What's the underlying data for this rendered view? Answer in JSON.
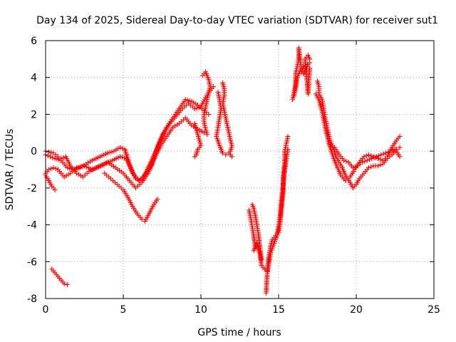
{
  "chart_data": {
    "type": "scatter",
    "title": "Day 134 of 2025, Sidereal Day-to-day VTEC variation (SDTVAR) for receiver sut1",
    "xlabel": "GPS time / hours",
    "ylabel": "SDTVAR / TECUs",
    "xlim": [
      0,
      25
    ],
    "ylim": [
      -8,
      6
    ],
    "xticks": [
      "0",
      "5",
      "10",
      "15",
      "20",
      "25"
    ],
    "yticks": [
      "-8",
      "-6",
      "-4",
      "-2",
      "0",
      "2",
      "4",
      "6"
    ],
    "grid": true,
    "marker": "plus",
    "color": "#ff0000",
    "series": [
      {
        "name": "arc-1",
        "points": [
          [
            0.0,
            0.0
          ],
          [
            0.2,
            -0.05
          ],
          [
            0.5,
            -0.1
          ],
          [
            0.8,
            -0.3
          ],
          [
            1.0,
            -0.4
          ],
          [
            1.3,
            -0.3
          ],
          [
            1.6,
            -0.8
          ],
          [
            2.0,
            -1.2
          ],
          [
            2.4,
            -1.4
          ],
          [
            2.8,
            -1.1
          ],
          [
            3.3,
            -0.9
          ],
          [
            3.8,
            -0.7
          ],
          [
            4.3,
            -0.5
          ],
          [
            4.8,
            -0.3
          ],
          [
            5.2,
            -0.4
          ],
          [
            5.6,
            -1.2
          ],
          [
            6.0,
            -1.6
          ],
          [
            6.4,
            -1.3
          ],
          [
            6.8,
            -0.8
          ],
          [
            7.2,
            0.2
          ],
          [
            7.6,
            1.0
          ],
          [
            8.0,
            1.5
          ],
          [
            8.4,
            1.9
          ],
          [
            8.8,
            2.3
          ],
          [
            9.2,
            2.6
          ],
          [
            9.6,
            2.3
          ],
          [
            10.0,
            2.4
          ],
          [
            10.3,
            2.9
          ],
          [
            10.6,
            3.3
          ],
          [
            10.8,
            3.5
          ]
        ]
      },
      {
        "name": "arc-2",
        "points": [
          [
            0.0,
            -0.2
          ],
          [
            0.3,
            -0.3
          ],
          [
            0.6,
            -0.4
          ],
          [
            1.0,
            -0.5
          ],
          [
            1.4,
            -0.9
          ],
          [
            1.8,
            -1.0
          ],
          [
            2.2,
            -0.9
          ],
          [
            2.6,
            -0.7
          ],
          [
            3.0,
            -0.5
          ],
          [
            3.5,
            -0.3
          ],
          [
            4.0,
            -0.1
          ],
          [
            4.4,
            0.0
          ],
          [
            4.8,
            0.2
          ],
          [
            5.1,
            0.1
          ],
          [
            5.4,
            -0.7
          ],
          [
            5.8,
            -1.5
          ],
          [
            6.2,
            -1.6
          ],
          [
            6.6,
            -0.9
          ],
          [
            7.0,
            -0.2
          ],
          [
            7.4,
            0.6
          ],
          [
            7.8,
            1.3
          ],
          [
            8.2,
            1.8
          ],
          [
            8.6,
            2.3
          ],
          [
            9.0,
            2.8
          ],
          [
            9.4,
            2.7
          ],
          [
            9.8,
            2.5
          ],
          [
            10.2,
            2.2
          ],
          [
            10.5,
            2.0
          ]
        ]
      },
      {
        "name": "arc-3",
        "points": [
          [
            0.0,
            -1.2
          ],
          [
            0.2,
            -1.0
          ],
          [
            0.5,
            -0.9
          ],
          [
            0.8,
            -1.0
          ],
          [
            1.2,
            -1.4
          ],
          [
            1.6,
            -1.2
          ],
          [
            2.0,
            -0.9
          ],
          [
            2.5,
            -0.8
          ],
          [
            3.0,
            -1.0
          ],
          [
            3.5,
            -0.8
          ],
          [
            4.0,
            -0.6
          ],
          [
            4.5,
            -0.9
          ],
          [
            5.0,
            -1.2
          ],
          [
            5.4,
            -1.6
          ],
          [
            5.8,
            -2.0
          ],
          [
            6.2,
            -1.7
          ],
          [
            6.6,
            -1.2
          ],
          [
            7.0,
            -0.4
          ],
          [
            7.4,
            0.3
          ],
          [
            7.8,
            0.8
          ],
          [
            8.2,
            1.3
          ],
          [
            8.6,
            1.5
          ],
          [
            9.0,
            1.8
          ],
          [
            9.4,
            1.4
          ],
          [
            9.8,
            1.2
          ],
          [
            10.2,
            1.0
          ]
        ]
      },
      {
        "name": "arc-4",
        "points": [
          [
            0.0,
            -1.3
          ],
          [
            0.2,
            -1.6
          ],
          [
            0.4,
            -1.9
          ],
          [
            0.6,
            -2.1
          ],
          [
            3.8,
            -1.2
          ],
          [
            4.2,
            -1.5
          ],
          [
            4.6,
            -1.8
          ],
          [
            5.0,
            -2.1
          ],
          [
            5.3,
            -2.5
          ],
          [
            5.6,
            -3.0
          ],
          [
            5.9,
            -3.4
          ],
          [
            6.2,
            -3.7
          ],
          [
            6.4,
            -3.8
          ],
          [
            6.6,
            -3.5
          ],
          [
            6.9,
            -3.0
          ],
          [
            7.2,
            -2.6
          ]
        ]
      },
      {
        "name": "arc-5",
        "points": [
          [
            0.4,
            -6.4
          ],
          [
            0.6,
            -6.6
          ],
          [
            0.8,
            -6.8
          ],
          [
            1.0,
            -7.0
          ],
          [
            1.2,
            -7.2
          ],
          [
            1.4,
            -7.25
          ]
        ]
      },
      {
        "name": "arc-6",
        "points": [
          [
            10.1,
            4.1
          ],
          [
            10.3,
            4.3
          ],
          [
            10.5,
            3.9
          ],
          [
            10.6,
            3.5
          ],
          [
            10.5,
            3.2
          ],
          [
            10.4,
            2.8
          ],
          [
            10.3,
            2.4
          ],
          [
            10.2,
            2.0
          ],
          [
            10.2,
            1.6
          ],
          [
            10.3,
            1.2
          ],
          [
            10.4,
            0.9
          ]
        ]
      },
      {
        "name": "arc-7",
        "points": [
          [
            9.6,
            1.5
          ],
          [
            9.7,
            1.2
          ],
          [
            9.8,
            0.9
          ],
          [
            9.9,
            0.6
          ],
          [
            10.0,
            0.3
          ],
          [
            9.8,
            0.1
          ],
          [
            9.7,
            -0.2
          ],
          [
            9.6,
            -0.3
          ]
        ]
      },
      {
        "name": "arc-8",
        "points": [
          [
            11.1,
            3.2
          ],
          [
            11.2,
            2.8
          ],
          [
            11.3,
            2.3
          ],
          [
            11.2,
            1.8
          ],
          [
            11.1,
            1.3
          ],
          [
            11.0,
            0.8
          ],
          [
            11.2,
            0.3
          ],
          [
            11.4,
            -0.1
          ],
          [
            11.6,
            -0.2
          ],
          [
            11.8,
            -0.1
          ],
          [
            12.0,
            -0.3
          ]
        ]
      },
      {
        "name": "arc-9",
        "points": [
          [
            11.4,
            3.7
          ],
          [
            11.5,
            3.4
          ],
          [
            11.5,
            3.0
          ],
          [
            11.4,
            2.6
          ],
          [
            11.5,
            2.2
          ],
          [
            11.6,
            1.8
          ],
          [
            11.7,
            1.4
          ],
          [
            11.8,
            1.0
          ],
          [
            11.9,
            0.6
          ],
          [
            12.0,
            0.3
          ],
          [
            11.9,
            0.0
          ]
        ]
      },
      {
        "name": "arc-10",
        "points": [
          [
            13.1,
            -3.2
          ],
          [
            13.2,
            -3.6
          ],
          [
            13.3,
            -4.1
          ],
          [
            13.4,
            -4.6
          ],
          [
            13.5,
            -5.2
          ],
          [
            13.4,
            -5.4
          ],
          [
            13.6,
            -5.0
          ],
          [
            13.8,
            -5.6
          ],
          [
            13.9,
            -6.2
          ],
          [
            14.1,
            -6.4
          ]
        ]
      },
      {
        "name": "arc-11",
        "points": [
          [
            13.3,
            -2.9
          ],
          [
            13.4,
            -3.1
          ],
          [
            13.5,
            -3.5
          ],
          [
            13.6,
            -4.0
          ],
          [
            13.7,
            -4.5
          ],
          [
            13.8,
            -5.2
          ],
          [
            13.9,
            -5.9
          ]
        ]
      },
      {
        "name": "arc-12",
        "points": [
          [
            14.2,
            -7.7
          ],
          [
            14.3,
            -6.2
          ],
          [
            14.4,
            -5.6
          ],
          [
            14.5,
            -5.1
          ],
          [
            14.6,
            -4.8
          ],
          [
            14.8,
            -4.6
          ],
          [
            15.0,
            -4.4
          ],
          [
            15.1,
            -3.9
          ],
          [
            15.2,
            -3.0
          ],
          [
            15.3,
            -2.2
          ],
          [
            15.3,
            -1.4
          ],
          [
            15.4,
            -0.6
          ],
          [
            15.4,
            0.0
          ],
          [
            15.5,
            0.4
          ],
          [
            15.6,
            0.8
          ]
        ]
      },
      {
        "name": "arc-13",
        "points": [
          [
            14.3,
            -6.5
          ],
          [
            14.4,
            -6.0
          ],
          [
            14.5,
            -5.5
          ],
          [
            14.7,
            -5.0
          ],
          [
            14.9,
            -4.6
          ],
          [
            15.0,
            -4.0
          ],
          [
            15.1,
            -3.5
          ],
          [
            15.2,
            -2.6
          ],
          [
            15.3,
            -1.8
          ],
          [
            15.4,
            -1.0
          ],
          [
            15.5,
            -0.4
          ],
          [
            15.6,
            0.1
          ]
        ]
      },
      {
        "name": "arc-14",
        "points": [
          [
            15.9,
            2.8
          ],
          [
            16.0,
            3.2
          ],
          [
            16.1,
            3.6
          ],
          [
            16.1,
            4.2
          ],
          [
            16.2,
            4.6
          ],
          [
            16.3,
            5.0
          ],
          [
            16.3,
            5.6
          ],
          [
            16.4,
            4.8
          ],
          [
            16.5,
            4.3
          ],
          [
            16.6,
            4.6
          ],
          [
            16.8,
            4.4
          ],
          [
            17.0,
            4.5
          ],
          [
            16.9,
            3.1
          ],
          [
            16.7,
            5.0
          ],
          [
            16.9,
            5.2
          ],
          [
            17.0,
            5.0
          ]
        ]
      },
      {
        "name": "arc-15",
        "points": [
          [
            16.0,
            3.0
          ],
          [
            16.2,
            4.0
          ],
          [
            16.4,
            4.4
          ],
          [
            16.6,
            4.2
          ],
          [
            16.8,
            4.6
          ],
          [
            17.0,
            4.8
          ]
        ]
      },
      {
        "name": "arc-16",
        "points": [
          [
            17.5,
            3.8
          ],
          [
            17.6,
            3.5
          ],
          [
            17.6,
            3.1
          ],
          [
            17.8,
            2.8
          ],
          [
            17.9,
            2.3
          ],
          [
            18.0,
            1.8
          ],
          [
            18.1,
            1.4
          ],
          [
            18.2,
            1.0
          ],
          [
            18.3,
            0.6
          ],
          [
            18.5,
            0.2
          ],
          [
            18.7,
            -0.3
          ],
          [
            18.9,
            -0.6
          ],
          [
            19.1,
            -0.9
          ],
          [
            19.3,
            -1.3
          ],
          [
            19.6,
            -1.7
          ],
          [
            19.8,
            -2.0
          ],
          [
            20.0,
            -1.8
          ],
          [
            20.2,
            -1.5
          ],
          [
            20.5,
            -1.2
          ],
          [
            20.8,
            -0.9
          ],
          [
            21.1,
            -0.8
          ],
          [
            21.4,
            -0.8
          ],
          [
            21.7,
            -0.7
          ],
          [
            22.0,
            -0.4
          ],
          [
            22.3,
            -0.2
          ],
          [
            22.6,
            0.1
          ],
          [
            22.8,
            0.2
          ]
        ]
      },
      {
        "name": "arc-17",
        "points": [
          [
            17.4,
            3.1
          ],
          [
            17.6,
            2.8
          ],
          [
            17.8,
            2.2
          ],
          [
            18.0,
            1.3
          ],
          [
            18.2,
            0.6
          ],
          [
            18.4,
            0.0
          ],
          [
            18.6,
            -0.5
          ],
          [
            18.8,
            -0.9
          ],
          [
            19.0,
            -1.3
          ],
          [
            19.3,
            -1.6
          ],
          [
            19.6,
            -1.4
          ],
          [
            19.9,
            -1.0
          ],
          [
            20.2,
            -0.6
          ],
          [
            20.5,
            -0.3
          ],
          [
            20.8,
            -0.2
          ],
          [
            21.1,
            -0.3
          ],
          [
            21.4,
            -0.4
          ],
          [
            21.7,
            -0.5
          ],
          [
            22.0,
            -0.3
          ],
          [
            22.3,
            0.2
          ],
          [
            22.6,
            0.6
          ],
          [
            22.8,
            0.8
          ]
        ]
      },
      {
        "name": "arc-18",
        "points": [
          [
            18.3,
            0.4
          ],
          [
            18.6,
            0.2
          ],
          [
            18.9,
            -0.2
          ],
          [
            19.2,
            -0.5
          ],
          [
            19.5,
            -0.6
          ],
          [
            19.8,
            -0.9
          ],
          [
            20.1,
            -0.8
          ],
          [
            20.4,
            -0.6
          ],
          [
            20.7,
            -0.5
          ],
          [
            21.0,
            -0.4
          ],
          [
            21.3,
            -0.3
          ],
          [
            21.6,
            -0.2
          ],
          [
            21.9,
            -0.1
          ],
          [
            22.2,
            0.0
          ],
          [
            22.5,
            0.1
          ],
          [
            22.8,
            -0.3
          ]
        ]
      }
    ]
  }
}
